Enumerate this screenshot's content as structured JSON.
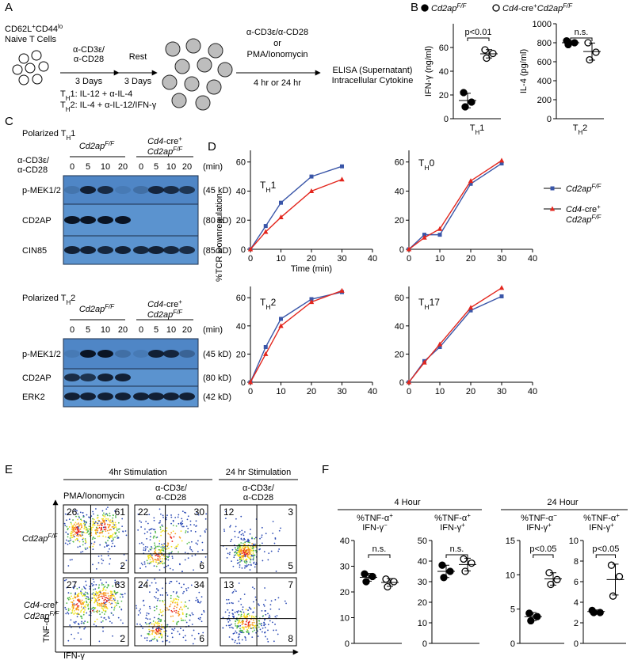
{
  "panel_a": {
    "label": "A",
    "cells_title": [
      {
        "t": "CD62L"
      },
      {
        "sup": "+"
      },
      {
        "t": "CD44"
      },
      {
        "sup": "lo"
      }
    ],
    "cells_subtitle": "Naive T Cells",
    "step1_top": [
      "α-CD3ε/",
      "α-CD28"
    ],
    "step1_bottom": "3 Days",
    "step2_top": "Rest",
    "step2_bottom": "3 Days",
    "conditions": [
      [
        {
          "t": "T"
        },
        {
          "sub": "H"
        },
        {
          "t": "1: IL-12 + α-IL-4"
        }
      ],
      [
        {
          "t": "T"
        },
        {
          "sub": "H"
        },
        {
          "t": "2: IL-4 + α-IL-12/IFN-γ"
        }
      ]
    ],
    "stim": [
      "α-CD3ε/α-CD28",
      "or",
      "PMA/Ionomycin"
    ],
    "stim_time": "4 hr or 24 hr",
    "readout": [
      "ELISA (Supernatant)",
      "Intracellular Cytokine"
    ]
  },
  "panel_b": {
    "label": "B",
    "legend": "top"
  },
  "panel_c": {
    "label": "C",
    "blots": [
      {
        "title": [
          {
            "t": "Polarized T"
          },
          {
            "sub": "H"
          },
          {
            "t": "1"
          }
        ],
        "groups": [
          [
            [
              {
                "i": "Cd2ap"
              },
              {
                "isup": "F/F"
              }
            ]
          ],
          [
            [
              {
                "i": "Cd4"
              },
              {
                "t": "-cre"
              },
              {
                "sup": "+"
              }
            ],
            [
              {
                "i": "Cd2ap"
              },
              {
                "isup": "F/F"
              }
            ]
          ]
        ],
        "treatment": [
          "α-CD3ε/",
          "α-CD28"
        ],
        "times": [
          0,
          5,
          10,
          20,
          0,
          5,
          10,
          20
        ],
        "unit": "(min)",
        "rows": [
          {
            "name": "p-MEK1/2",
            "size": "(45 kD)"
          },
          {
            "name": "CD2AP",
            "size": "(80 kD)"
          },
          {
            "name": "CIN85",
            "size": "(85 kD)"
          }
        ]
      },
      {
        "title": [
          {
            "t": "Polarized T"
          },
          {
            "sub": "H"
          },
          {
            "t": "2"
          }
        ],
        "groups": [
          [
            [
              {
                "i": "Cd2ap"
              },
              {
                "isup": "F/F"
              }
            ]
          ],
          [
            [
              {
                "i": "Cd4"
              },
              {
                "t": "-cre"
              },
              {
                "sup": "+"
              }
            ],
            [
              {
                "i": "Cd2ap"
              },
              {
                "isup": "F/F"
              }
            ]
          ]
        ],
        "times": [
          0,
          5,
          10,
          20,
          0,
          5,
          10,
          20
        ],
        "unit": "(min)",
        "rows": [
          {
            "name": "p-MEK1/2",
            "size": "(45 kD)"
          },
          {
            "name": "CD2AP",
            "size": "(80 kD)"
          },
          {
            "name": "ERK2",
            "size": "(42 kD)"
          }
        ]
      }
    ]
  },
  "panel_d": {
    "label": "D",
    "legend": "right"
  },
  "panel_e": {
    "label": "E",
    "headers": [
      "4hr Stimulation",
      "24 hr Stimulation"
    ],
    "columns": [
      [
        "PMA/Ionomycin"
      ],
      [
        "α-CD3ε/",
        "α-CD28"
      ],
      [
        "α-CD3ε/",
        "α-CD28"
      ]
    ],
    "rows": [
      [
        [
          {
            "i": "Cd2ap"
          },
          {
            "isup": "F/F"
          }
        ]
      ],
      [
        [
          {
            "i": "Cd4"
          },
          {
            "t": "-cre"
          },
          {
            "sup": "+"
          }
        ],
        [
          {
            "i": "Cd2ap"
          },
          {
            "isup": "F/F"
          }
        ]
      ]
    ],
    "quadrants": [
      [
        [
          26,
          61,
          2
        ],
        [
          22,
          30,
          6
        ],
        [
          12,
          3,
          5
        ]
      ],
      [
        [
          27,
          63,
          2
        ],
        [
          24,
          34,
          6
        ],
        [
          13,
          7,
          8
        ]
      ]
    ],
    "quadrant_colors": [
      [
        [
          "#000000",
          "#000000",
          "#000000"
        ],
        [
          "#000000",
          "#000000",
          "#000000"
        ],
        [
          "#000000",
          "#000000",
          "#000000"
        ]
      ],
      [
        [
          "#000000",
          "#000000",
          "#000000"
        ],
        [
          "#000000",
          "#000000",
          "#000000"
        ],
        [
          "#000000",
          "#e3261d",
          "#e3261d"
        ]
      ]
    ],
    "y_axis": "TNF-α",
    "x_axis": "IFN-γ"
  },
  "panel_f": {
    "label": "F",
    "groups": [
      "4 Hour",
      "24 Hour"
    ]
  },
  "chart_data": [
    {
      "type": "dot",
      "ylabel": "IFN-γ (ng/ml)",
      "xlabel": [
        {
          "t": "T"
        },
        {
          "sub": "H"
        },
        {
          "t": "1"
        }
      ],
      "ylim": [
        0,
        80
      ],
      "yticks": [
        0,
        20,
        40,
        60
      ],
      "significance": "p<0.01",
      "series": [
        {
          "name": [
            {
              "i": "Cd2ap"
            },
            {
              "isup": "F/F"
            }
          ],
          "color": "#000000",
          "filled": true,
          "values": [
            22,
            14,
            10
          ],
          "mean": 15.3,
          "sd": 6.1
        },
        {
          "name": [
            {
              "i": "Cd4"
            },
            {
              "t": "-cre"
            },
            {
              "sup": "+"
            },
            {
              "i": "Cd2ap"
            },
            {
              "isup": "F/F"
            }
          ],
          "color": "#000000",
          "filled": false,
          "values": [
            58,
            55,
            51
          ],
          "mean": 54.7,
          "sd": 3.5
        }
      ]
    },
    {
      "type": "dot",
      "ylabel": "IL-4 (pg/ml)",
      "xlabel": [
        {
          "t": "T"
        },
        {
          "sub": "H"
        },
        {
          "t": "2"
        }
      ],
      "ylim": [
        0,
        1000
      ],
      "yticks": [
        0,
        200,
        400,
        600,
        800,
        1000
      ],
      "significance": "n.s.",
      "series": [
        {
          "color": "#000000",
          "filled": true,
          "values": [
            820,
            800,
            780
          ],
          "mean": 800,
          "sd": 20
        },
        {
          "color": "#000000",
          "filled": false,
          "values": [
            800,
            700,
            620
          ],
          "mean": 707,
          "sd": 90
        }
      ]
    },
    {
      "type": "line",
      "title": [
        {
          "t": "T"
        },
        {
          "sub": "H"
        },
        {
          "t": "1"
        }
      ],
      "ylabel": "%TCR Downregulation",
      "xlabel": "Time (min)",
      "xlim": [
        0,
        40
      ],
      "xticks": [
        0,
        10,
        20,
        30,
        40
      ],
      "ylim": [
        0,
        68
      ],
      "yticks": [
        0,
        20,
        40,
        60
      ],
      "x": [
        0,
        5,
        10,
        20,
        30
      ],
      "series": [
        {
          "name": [
            {
              "i": "Cd2ap"
            },
            {
              "isup": "F/F"
            }
          ],
          "color": "#3a56a8",
          "marker": "square",
          "values": [
            0,
            16,
            32,
            50,
            57
          ]
        },
        {
          "name": [
            [
              {
                "i": "Cd4"
              },
              {
                "t": "-cre"
              },
              {
                "sup": "+"
              }
            ],
            [
              {
                "i": "Cd2ap"
              },
              {
                "isup": "F/F"
              }
            ]
          ],
          "color": "#e3261d",
          "marker": "triangle",
          "values": [
            0,
            12,
            22,
            40,
            48
          ]
        }
      ]
    },
    {
      "type": "line",
      "title": [
        {
          "t": "T"
        },
        {
          "sub": "H"
        },
        {
          "t": "0"
        }
      ],
      "xlim": [
        0,
        40
      ],
      "xticks": [
        0,
        10,
        20,
        30,
        40
      ],
      "ylim": [
        0,
        68
      ],
      "yticks": [
        0,
        20,
        40,
        60
      ],
      "x": [
        0,
        5,
        10,
        20,
        30
      ],
      "series": [
        {
          "color": "#3a56a8",
          "marker": "square",
          "values": [
            0,
            10,
            10,
            45,
            59
          ]
        },
        {
          "color": "#e3261d",
          "marker": "triangle",
          "values": [
            0,
            8,
            14,
            47,
            61
          ]
        }
      ]
    },
    {
      "type": "line",
      "title": [
        {
          "t": "T"
        },
        {
          "sub": "H"
        },
        {
          "t": "2"
        }
      ],
      "xlim": [
        0,
        40
      ],
      "xticks": [
        0,
        10,
        20,
        30,
        40
      ],
      "ylim": [
        0,
        68
      ],
      "yticks": [
        0,
        20,
        40,
        60
      ],
      "x": [
        0,
        5,
        10,
        20,
        30
      ],
      "series": [
        {
          "color": "#3a56a8",
          "marker": "square",
          "values": [
            0,
            25,
            45,
            59,
            64
          ]
        },
        {
          "color": "#e3261d",
          "marker": "triangle",
          "values": [
            0,
            20,
            40,
            57,
            65
          ]
        }
      ]
    },
    {
      "type": "line",
      "title": [
        {
          "t": "T"
        },
        {
          "sub": "H"
        },
        {
          "t": "17"
        }
      ],
      "xlim": [
        0,
        40
      ],
      "xticks": [
        0,
        10,
        20,
        30,
        40
      ],
      "ylim": [
        0,
        68
      ],
      "yticks": [
        0,
        20,
        40,
        60
      ],
      "x": [
        0,
        5,
        10,
        20,
        30
      ],
      "series": [
        {
          "color": "#3a56a8",
          "marker": "square",
          "values": [
            0,
            15,
            25,
            51,
            61
          ]
        },
        {
          "color": "#e3261d",
          "marker": "triangle",
          "values": [
            0,
            14,
            27,
            53,
            67
          ]
        }
      ]
    },
    {
      "type": "dot",
      "label": [
        [
          {
            "t": "%TNF-α"
          },
          {
            "sup": "+"
          }
        ],
        [
          {
            "t": "IFN-γ"
          },
          {
            "sup": "−"
          }
        ]
      ],
      "ylim": [
        0,
        40
      ],
      "yticks": [
        0,
        10,
        20,
        30,
        40
      ],
      "significance": "n.s.",
      "series": [
        {
          "color": "#000000",
          "filled": true,
          "values": [
            27,
            26,
            24
          ],
          "mean": 25.7,
          "sd": 1.5
        },
        {
          "color": "#000000",
          "filled": false,
          "values": [
            25,
            24,
            22
          ],
          "mean": 23.7,
          "sd": 1.5
        }
      ]
    },
    {
      "type": "dot",
      "label": [
        [
          {
            "t": "%TNF-α"
          },
          {
            "sup": "+"
          }
        ],
        [
          {
            "t": "IFN-γ"
          },
          {
            "sup": "+"
          }
        ]
      ],
      "ylim": [
        0,
        50
      ],
      "yticks": [
        0,
        10,
        20,
        30,
        40,
        50
      ],
      "significance": "n.s.",
      "series": [
        {
          "color": "#000000",
          "filled": true,
          "values": [
            38,
            35,
            32
          ],
          "mean": 35,
          "sd": 3
        },
        {
          "color": "#000000",
          "filled": false,
          "values": [
            41,
            39,
            35
          ],
          "mean": 38.3,
          "sd": 3.1
        }
      ]
    },
    {
      "type": "dot",
      "label": [
        [
          {
            "t": "%TNF-α"
          },
          {
            "sup": "−"
          }
        ],
        [
          {
            "t": "IFN-γ"
          },
          {
            "sup": "+"
          }
        ]
      ],
      "ylim": [
        0,
        15
      ],
      "yticks": [
        0,
        5,
        10,
        15
      ],
      "significance": "p<0.05",
      "series": [
        {
          "color": "#000000",
          "filled": true,
          "values": [
            4.4,
            3.9,
            3.3
          ],
          "mean": 3.9,
          "sd": 0.6
        },
        {
          "color": "#000000",
          "filled": false,
          "values": [
            10.3,
            9.3,
            8.6
          ],
          "mean": 9.4,
          "sd": 0.9
        }
      ]
    },
    {
      "type": "dot",
      "label": [
        [
          {
            "t": "%TNF-α"
          },
          {
            "sup": "+"
          }
        ],
        [
          {
            "t": "IFN-γ"
          },
          {
            "sup": "+"
          }
        ]
      ],
      "ylim": [
        0,
        10
      ],
      "yticks": [
        0,
        2,
        4,
        6,
        8,
        10
      ],
      "significance": "p<0.05",
      "series": [
        {
          "color": "#000000",
          "filled": true,
          "values": [
            3.2,
            3.0,
            3.0
          ],
          "mean": 3.1,
          "sd": 0.15
        },
        {
          "color": "#000000",
          "filled": false,
          "values": [
            7.6,
            6.5,
            4.6
          ],
          "mean": 6.2,
          "sd": 1.5
        }
      ]
    }
  ]
}
